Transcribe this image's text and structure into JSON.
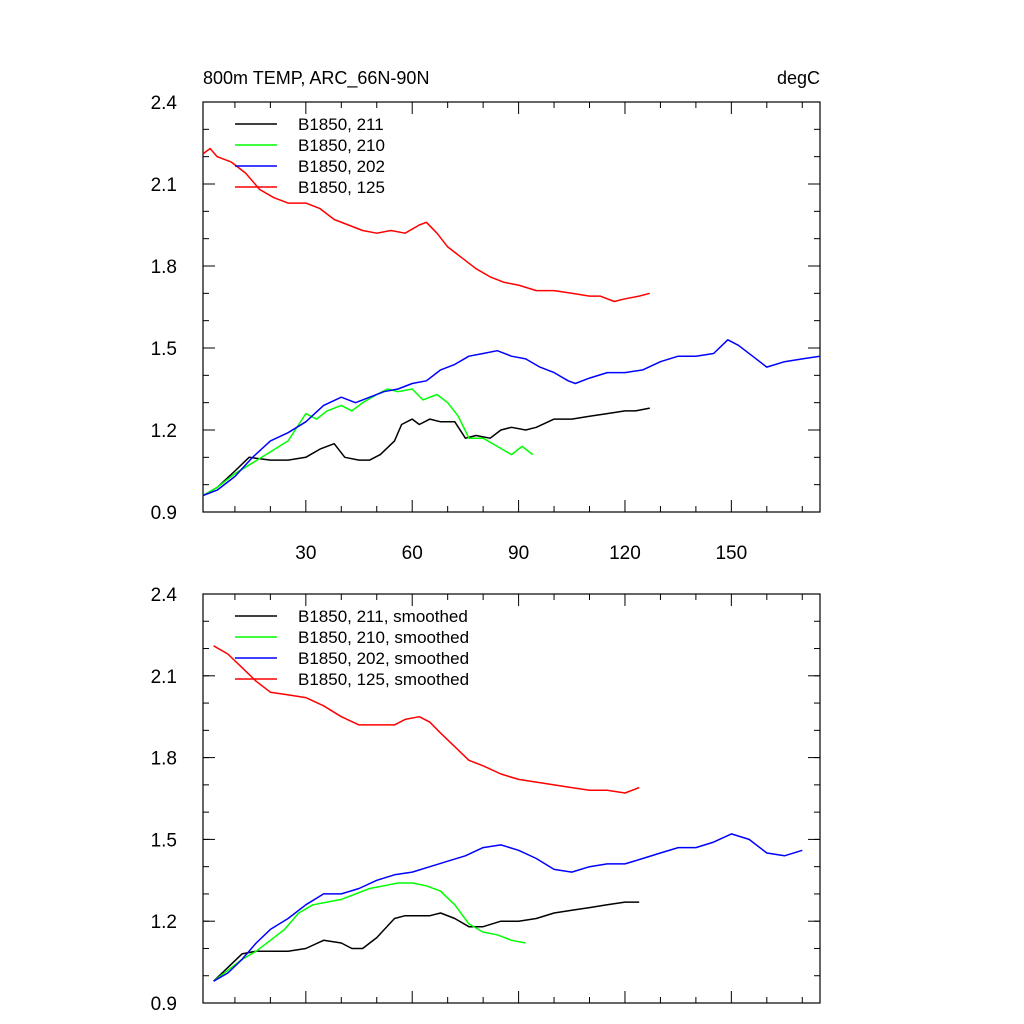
{
  "chart_data": [
    {
      "type": "line",
      "title": "800m TEMP, ARC_66N-90N",
      "units": "degC",
      "xlim": [
        1,
        175
      ],
      "ylim": [
        0.9,
        2.4
      ],
      "xticks": [
        "30",
        "60",
        "90",
        "120",
        "150"
      ],
      "yticks": [
        "0.9",
        "1.2",
        "1.5",
        "1.8",
        "2.1",
        "2.4"
      ],
      "legend_position": "top-left",
      "series": [
        {
          "name": "B1850, 211",
          "color": "#000000",
          "x": [
            1,
            5,
            10,
            14,
            20,
            25,
            30,
            34,
            38,
            41,
            45,
            48,
            51,
            55,
            57,
            60,
            62,
            65,
            68,
            72,
            75,
            78,
            82,
            85,
            88,
            92,
            95,
            100,
            105,
            110,
            115,
            120,
            123,
            127
          ],
          "y": [
            0.96,
            0.99,
            1.05,
            1.1,
            1.09,
            1.09,
            1.1,
            1.13,
            1.15,
            1.1,
            1.09,
            1.09,
            1.11,
            1.16,
            1.22,
            1.24,
            1.22,
            1.24,
            1.23,
            1.23,
            1.17,
            1.18,
            1.17,
            1.2,
            1.21,
            1.2,
            1.21,
            1.24,
            1.24,
            1.25,
            1.26,
            1.27,
            1.27,
            1.28
          ]
        },
        {
          "name": "B1850, 210",
          "color": "#00ff00",
          "x": [
            1,
            5,
            10,
            15,
            20,
            25,
            30,
            33,
            36,
            40,
            43,
            46,
            50,
            53,
            56,
            60,
            63,
            67,
            70,
            73,
            76,
            80,
            84,
            88,
            91,
            94
          ],
          "y": [
            0.96,
            0.99,
            1.04,
            1.08,
            1.12,
            1.16,
            1.26,
            1.24,
            1.27,
            1.29,
            1.27,
            1.3,
            1.33,
            1.35,
            1.34,
            1.35,
            1.31,
            1.33,
            1.3,
            1.25,
            1.17,
            1.17,
            1.14,
            1.11,
            1.14,
            1.11
          ]
        },
        {
          "name": "B1850, 202",
          "color": "#0000ff",
          "x": [
            1,
            5,
            10,
            15,
            20,
            25,
            30,
            35,
            40,
            44,
            48,
            52,
            56,
            60,
            64,
            68,
            72,
            76,
            80,
            84,
            88,
            92,
            96,
            100,
            104,
            106,
            110,
            115,
            120,
            125,
            130,
            135,
            140,
            145,
            149,
            152,
            156,
            160,
            165,
            170,
            175
          ],
          "y": [
            0.96,
            0.98,
            1.03,
            1.1,
            1.16,
            1.19,
            1.23,
            1.29,
            1.32,
            1.3,
            1.32,
            1.34,
            1.35,
            1.37,
            1.38,
            1.42,
            1.44,
            1.47,
            1.48,
            1.49,
            1.47,
            1.46,
            1.43,
            1.41,
            1.38,
            1.37,
            1.39,
            1.41,
            1.41,
            1.42,
            1.45,
            1.47,
            1.47,
            1.48,
            1.53,
            1.51,
            1.47,
            1.43,
            1.45,
            1.46,
            1.47
          ]
        },
        {
          "name": "B1850, 125",
          "color": "#ff0000",
          "x": [
            1,
            3,
            5,
            9,
            13,
            17,
            21,
            25,
            30,
            34,
            38,
            42,
            46,
            50,
            54,
            58,
            62,
            64,
            67,
            70,
            74,
            78,
            82,
            86,
            90,
            95,
            100,
            105,
            110,
            113,
            117,
            120,
            124,
            127
          ],
          "y": [
            2.21,
            2.23,
            2.2,
            2.18,
            2.14,
            2.08,
            2.05,
            2.03,
            2.03,
            2.01,
            1.97,
            1.95,
            1.93,
            1.92,
            1.93,
            1.92,
            1.95,
            1.96,
            1.92,
            1.87,
            1.83,
            1.79,
            1.76,
            1.74,
            1.73,
            1.71,
            1.71,
            1.7,
            1.69,
            1.69,
            1.67,
            1.68,
            1.69,
            1.7
          ]
        }
      ]
    },
    {
      "type": "line",
      "xlim": [
        1,
        175
      ],
      "ylim": [
        0.9,
        2.4
      ],
      "yticks": [
        "0.9",
        "1.2",
        "1.5",
        "1.8",
        "2.1",
        "2.4"
      ],
      "legend_position": "top-left",
      "series": [
        {
          "name": "B1850, 211, smoothed",
          "color": "#000000",
          "x": [
            4,
            8,
            12,
            16,
            20,
            25,
            30,
            35,
            40,
            43,
            46,
            50,
            55,
            58,
            62,
            65,
            68,
            72,
            76,
            80,
            85,
            90,
            95,
            100,
            105,
            110,
            115,
            120,
            124
          ],
          "y": [
            0.98,
            1.03,
            1.08,
            1.09,
            1.09,
            1.09,
            1.1,
            1.13,
            1.12,
            1.1,
            1.1,
            1.14,
            1.21,
            1.22,
            1.22,
            1.22,
            1.23,
            1.21,
            1.18,
            1.18,
            1.2,
            1.2,
            1.21,
            1.23,
            1.24,
            1.25,
            1.26,
            1.27,
            1.27
          ]
        },
        {
          "name": "B1850, 210, smoothed",
          "color": "#00ff00",
          "x": [
            4,
            8,
            12,
            16,
            20,
            24,
            28,
            32,
            36,
            40,
            44,
            48,
            52,
            56,
            60,
            64,
            68,
            72,
            76,
            80,
            84,
            88,
            92
          ],
          "y": [
            0.98,
            1.02,
            1.06,
            1.09,
            1.13,
            1.17,
            1.23,
            1.26,
            1.27,
            1.28,
            1.3,
            1.32,
            1.33,
            1.34,
            1.34,
            1.33,
            1.31,
            1.26,
            1.19,
            1.16,
            1.15,
            1.13,
            1.12
          ]
        },
        {
          "name": "B1850, 202, smoothed",
          "color": "#0000ff",
          "x": [
            4,
            8,
            12,
            16,
            20,
            25,
            30,
            35,
            40,
            45,
            50,
            55,
            60,
            65,
            70,
            75,
            80,
            85,
            90,
            95,
            100,
            105,
            110,
            115,
            120,
            125,
            130,
            135,
            140,
            145,
            150,
            155,
            160,
            165,
            170
          ],
          "y": [
            0.98,
            1.01,
            1.06,
            1.12,
            1.17,
            1.21,
            1.26,
            1.3,
            1.3,
            1.32,
            1.35,
            1.37,
            1.38,
            1.4,
            1.42,
            1.44,
            1.47,
            1.48,
            1.46,
            1.43,
            1.39,
            1.38,
            1.4,
            1.41,
            1.41,
            1.43,
            1.45,
            1.47,
            1.47,
            1.49,
            1.52,
            1.5,
            1.45,
            1.44,
            1.46
          ]
        },
        {
          "name": "B1850, 125, smoothed",
          "color": "#ff0000",
          "x": [
            4,
            8,
            12,
            16,
            20,
            25,
            30,
            35,
            40,
            45,
            50,
            55,
            58,
            62,
            65,
            68,
            72,
            76,
            80,
            85,
            90,
            95,
            100,
            105,
            110,
            115,
            120,
            124
          ],
          "y": [
            2.21,
            2.18,
            2.13,
            2.08,
            2.04,
            2.03,
            2.02,
            1.99,
            1.95,
            1.92,
            1.92,
            1.92,
            1.94,
            1.95,
            1.93,
            1.89,
            1.84,
            1.79,
            1.77,
            1.74,
            1.72,
            1.71,
            1.7,
            1.69,
            1.68,
            1.68,
            1.67,
            1.69
          ]
        }
      ]
    }
  ]
}
